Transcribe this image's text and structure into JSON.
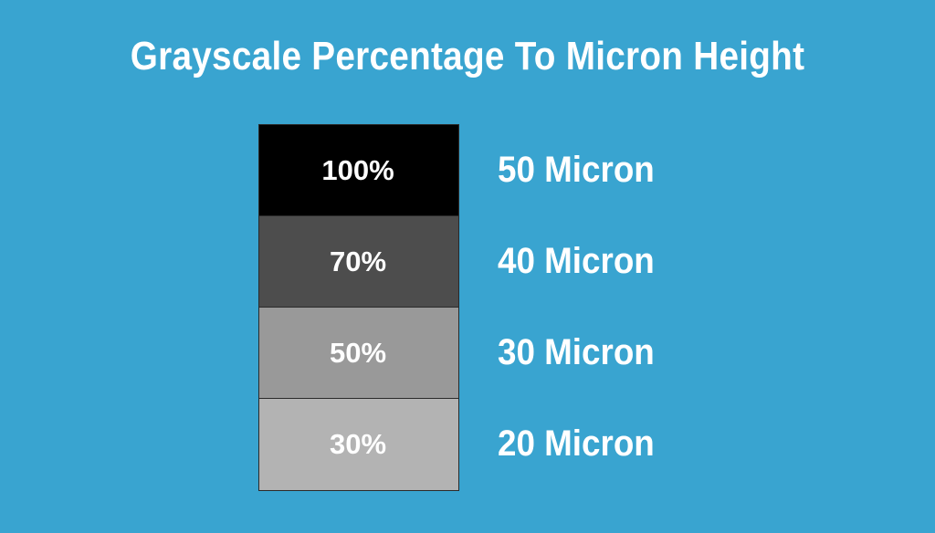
{
  "title": "Grayscale Percentage To Micron Height",
  "background_color": "#39a4d0",
  "rows": [
    {
      "percentage": "100%",
      "micron": "50 Micron",
      "swatch_color": "#000000"
    },
    {
      "percentage": "70%",
      "micron": "40 Micron",
      "swatch_color": "#4d4d4d"
    },
    {
      "percentage": "50%",
      "micron": "30 Micron",
      "swatch_color": "#999999"
    },
    {
      "percentage": "30%",
      "micron": "20 Micron",
      "swatch_color": "#b3b3b3"
    }
  ]
}
